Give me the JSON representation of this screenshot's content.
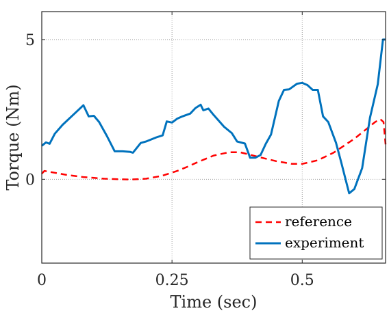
{
  "chart_data": {
    "type": "line",
    "title": "",
    "xlabel": "Time (sec)",
    "ylabel": "Torque (Nm)",
    "xlim": [
      0,
      0.66
    ],
    "ylim": [
      -3,
      6
    ],
    "xticks": [
      0,
      0.25,
      0.5
    ],
    "xtick_labels": [
      "0",
      "0.25",
      "0.5"
    ],
    "yticks": [
      0,
      5
    ],
    "ytick_labels": [
      "0",
      "5"
    ],
    "grid": true,
    "grid_style": "dotted",
    "legend_position": "bottom-right",
    "series": [
      {
        "name": "reference",
        "color": "#ff0000",
        "line_style": "dashed",
        "x": [
          0,
          0.005,
          0.02,
          0.05,
          0.08,
          0.1,
          0.12,
          0.15,
          0.17,
          0.2,
          0.23,
          0.26,
          0.28,
          0.3,
          0.33,
          0.36,
          0.38,
          0.4,
          0.42,
          0.45,
          0.48,
          0.5,
          0.53,
          0.56,
          0.58,
          0.6,
          0.62,
          0.64,
          0.65,
          0.656,
          0.66
        ],
        "values": [
          0.2,
          0.3,
          0.25,
          0.15,
          0.08,
          0.05,
          0.02,
          0.0,
          -0.01,
          0.02,
          0.12,
          0.3,
          0.45,
          0.62,
          0.85,
          0.97,
          0.97,
          0.88,
          0.78,
          0.65,
          0.55,
          0.55,
          0.68,
          0.95,
          1.2,
          1.45,
          1.75,
          2.05,
          2.15,
          2.05,
          1.25
        ]
      },
      {
        "name": "experiment",
        "color": "#0072bd",
        "line_style": "solid",
        "x": [
          0,
          0.008,
          0.015,
          0.025,
          0.04,
          0.06,
          0.08,
          0.09,
          0.1,
          0.11,
          0.125,
          0.14,
          0.155,
          0.17,
          0.175,
          0.19,
          0.2,
          0.22,
          0.232,
          0.24,
          0.25,
          0.26,
          0.27,
          0.285,
          0.295,
          0.305,
          0.31,
          0.32,
          0.33,
          0.35,
          0.365,
          0.375,
          0.39,
          0.4,
          0.41,
          0.42,
          0.43,
          0.44,
          0.455,
          0.465,
          0.475,
          0.49,
          0.5,
          0.51,
          0.52,
          0.53,
          0.54,
          0.55,
          0.565,
          0.575,
          0.59,
          0.6,
          0.615,
          0.63,
          0.645,
          0.655,
          0.66
        ],
        "values": [
          1.2,
          1.32,
          1.27,
          1.63,
          1.95,
          2.3,
          2.65,
          2.25,
          2.27,
          2.05,
          1.55,
          1.0,
          1.0,
          0.98,
          0.95,
          1.3,
          1.35,
          1.5,
          1.57,
          2.07,
          2.03,
          2.17,
          2.25,
          2.35,
          2.55,
          2.67,
          2.47,
          2.53,
          2.3,
          1.88,
          1.65,
          1.35,
          1.28,
          0.77,
          0.77,
          0.87,
          1.27,
          1.6,
          2.8,
          3.2,
          3.22,
          3.42,
          3.45,
          3.37,
          3.2,
          3.2,
          2.25,
          2.05,
          1.3,
          0.6,
          -0.5,
          -0.35,
          0.4,
          2.2,
          3.4,
          5.0,
          5.0
        ]
      }
    ]
  }
}
